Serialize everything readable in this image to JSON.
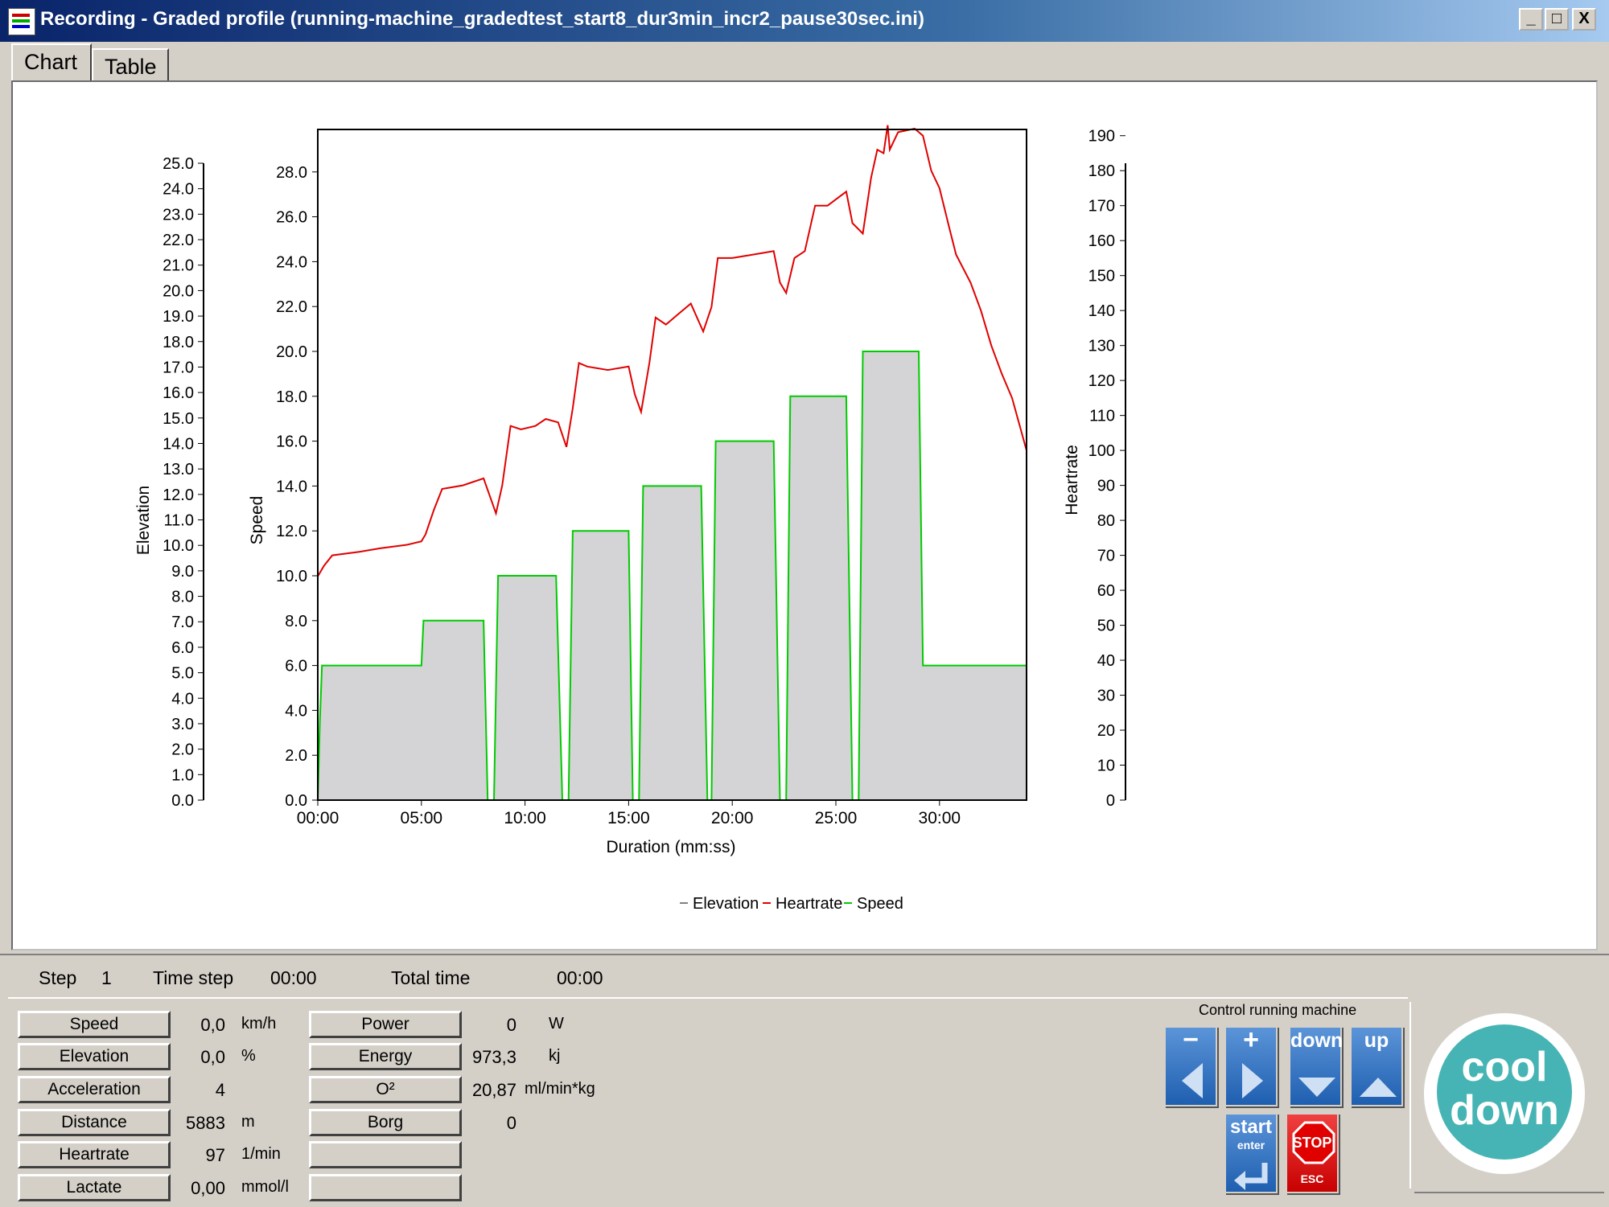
{
  "window": {
    "title": "Recording - Graded profile (running-machine_gradedtest_start8_dur3min_incr2_pause30sec.ini)",
    "minimize": "_",
    "maximize": "□",
    "close": "X"
  },
  "tabs": [
    {
      "label": "Chart",
      "active": true
    },
    {
      "label": "Table",
      "active": false
    }
  ],
  "chart_data": {
    "type": "line",
    "xlabel": "Duration (mm:ss)",
    "x_ticks": [
      "00:00",
      "05:00",
      "10:00",
      "15:00",
      "20:00",
      "25:00",
      "30:00"
    ],
    "xlim": [
      0,
      34.2
    ],
    "axes": {
      "elevation": {
        "label": "Elevation",
        "ylim": [
          0,
          25
        ],
        "ticks": [
          "0.0",
          "1.0",
          "2.0",
          "3.0",
          "4.0",
          "5.0",
          "6.0",
          "7.0",
          "8.0",
          "9.0",
          "10.0",
          "11.0",
          "12.0",
          "13.0",
          "14.0",
          "15.0",
          "16.0",
          "17.0",
          "18.0",
          "19.0",
          "20.0",
          "21.0",
          "22.0",
          "23.0",
          "24.0",
          "25.0"
        ]
      },
      "speed": {
        "label": "Speed",
        "ylim": [
          0,
          30
        ],
        "ticks": [
          "0.0",
          "2.0",
          "4.0",
          "6.0",
          "8.0",
          "10.0",
          "12.0",
          "14.0",
          "16.0",
          "18.0",
          "20.0",
          "22.0",
          "24.0",
          "26.0",
          "28.0"
        ]
      },
      "heartrate": {
        "label": "Heartrate",
        "ylim": [
          0,
          195
        ],
        "ticks": [
          "0",
          "10",
          "20",
          "30",
          "40",
          "50",
          "60",
          "70",
          "80",
          "90",
          "100",
          "110",
          "120",
          "130",
          "140",
          "150",
          "160",
          "170",
          "180",
          "190"
        ]
      }
    },
    "legend": [
      "Elevation",
      "Heartrate",
      "Speed"
    ],
    "legend_position": "bottom-center",
    "colors": {
      "elevation": "#808080",
      "heartrate": "#e00000",
      "speed": "#00cc00",
      "area": "#d4d3d6"
    },
    "series": [
      {
        "name": "Speed",
        "axis": "speed",
        "points": [
          [
            0,
            0
          ],
          [
            0.1,
            3.5
          ],
          [
            0.2,
            6
          ],
          [
            5,
            6
          ],
          [
            5.1,
            8
          ],
          [
            8,
            8
          ],
          [
            8.2,
            0
          ],
          [
            8.5,
            0
          ],
          [
            8.7,
            10
          ],
          [
            11.5,
            10
          ],
          [
            11.8,
            0
          ],
          [
            12.1,
            0
          ],
          [
            12.3,
            12
          ],
          [
            15,
            12
          ],
          [
            15.2,
            0
          ],
          [
            15.5,
            0
          ],
          [
            15.7,
            14
          ],
          [
            18.5,
            14
          ],
          [
            18.8,
            0
          ],
          [
            19,
            0
          ],
          [
            19.2,
            16
          ],
          [
            22,
            16
          ],
          [
            22.3,
            0
          ],
          [
            22.6,
            0
          ],
          [
            22.8,
            18
          ],
          [
            25.5,
            18
          ],
          [
            25.8,
            0
          ],
          [
            26.1,
            0
          ],
          [
            26.3,
            20
          ],
          [
            29,
            20
          ],
          [
            29.2,
            6
          ],
          [
            34.2,
            6
          ]
        ]
      },
      {
        "name": "Heartrate",
        "axis": "heartrate",
        "points": [
          [
            0,
            64
          ],
          [
            0.3,
            67
          ],
          [
            0.7,
            70
          ],
          [
            2,
            71
          ],
          [
            3,
            72
          ],
          [
            4.3,
            73
          ],
          [
            5,
            74
          ],
          [
            5.2,
            76
          ],
          [
            5.6,
            83
          ],
          [
            6,
            89
          ],
          [
            7,
            90
          ],
          [
            8,
            92
          ],
          [
            8.3,
            87
          ],
          [
            8.6,
            82
          ],
          [
            8.9,
            90
          ],
          [
            9.3,
            107
          ],
          [
            9.8,
            106
          ],
          [
            10.5,
            107
          ],
          [
            11,
            109
          ],
          [
            11.6,
            108
          ],
          [
            12,
            101
          ],
          [
            12.3,
            112
          ],
          [
            12.6,
            125
          ],
          [
            13,
            124
          ],
          [
            14,
            123
          ],
          [
            15,
            124
          ],
          [
            15.3,
            116
          ],
          [
            15.6,
            111
          ],
          [
            16,
            125
          ],
          [
            16.3,
            138
          ],
          [
            16.8,
            136
          ],
          [
            17.4,
            139
          ],
          [
            18,
            142
          ],
          [
            18.6,
            134
          ],
          [
            19,
            141
          ],
          [
            19.3,
            155
          ],
          [
            20,
            155
          ],
          [
            21,
            156
          ],
          [
            22,
            157
          ],
          [
            22.3,
            148
          ],
          [
            22.6,
            145
          ],
          [
            23,
            155
          ],
          [
            23.5,
            157
          ],
          [
            24,
            170
          ],
          [
            24.6,
            170
          ],
          [
            25.5,
            174
          ],
          [
            25.8,
            165
          ],
          [
            26.3,
            162
          ],
          [
            26.7,
            178
          ],
          [
            27,
            186
          ],
          [
            27.3,
            185
          ],
          [
            27.5,
            193
          ],
          [
            27.6,
            186
          ],
          [
            28,
            191
          ],
          [
            28.8,
            192
          ],
          [
            29.2,
            190
          ],
          [
            29.6,
            180
          ],
          [
            30,
            175
          ],
          [
            30.5,
            163
          ],
          [
            30.8,
            156
          ],
          [
            31.5,
            148
          ],
          [
            32,
            140
          ],
          [
            32.5,
            130
          ],
          [
            33,
            122
          ],
          [
            33.5,
            115
          ],
          [
            34.2,
            100
          ]
        ]
      },
      {
        "name": "Elevation",
        "axis": "elevation",
        "points": [
          [
            0,
            0
          ],
          [
            34.2,
            0
          ]
        ]
      }
    ]
  },
  "status": {
    "step_label": "Step",
    "step_value": "1",
    "time_step_label": "Time step",
    "time_step_value": "00:00",
    "total_time_label": "Total time",
    "total_time_value": "00:00"
  },
  "metrics_left": [
    {
      "label": "Speed",
      "value": "0,0",
      "unit": "km/h"
    },
    {
      "label": "Elevation",
      "value": "0,0",
      "unit": "%"
    },
    {
      "label": "Acceleration",
      "value": "4",
      "unit": ""
    },
    {
      "label": "Distance",
      "value": "5883",
      "unit": "m"
    },
    {
      "label": "Heartrate",
      "value": "97",
      "unit": "1/min"
    },
    {
      "label": "Lactate",
      "value": "0,00",
      "unit": "mmol/l"
    }
  ],
  "metrics_right": [
    {
      "label": "Power",
      "value": "0",
      "unit": "W"
    },
    {
      "label": "Energy",
      "value": "973,3",
      "unit": "kj"
    },
    {
      "label": "O²",
      "value": "20,87",
      "unit": "ml/min*kg"
    },
    {
      "label": "Borg",
      "value": "0",
      "unit": ""
    },
    {
      "label": "",
      "value": "",
      "unit": ""
    },
    {
      "label": "",
      "value": "",
      "unit": ""
    }
  ],
  "control": {
    "title": "Control running machine",
    "minus_label": "−",
    "plus_label": "+",
    "down_label": "down",
    "up_label": "up",
    "start_label": "start",
    "start_sub": "enter",
    "stop_label": "STOP",
    "stop_sub": "ESC",
    "cooldown_line1": "cool",
    "cooldown_line2": "down"
  }
}
